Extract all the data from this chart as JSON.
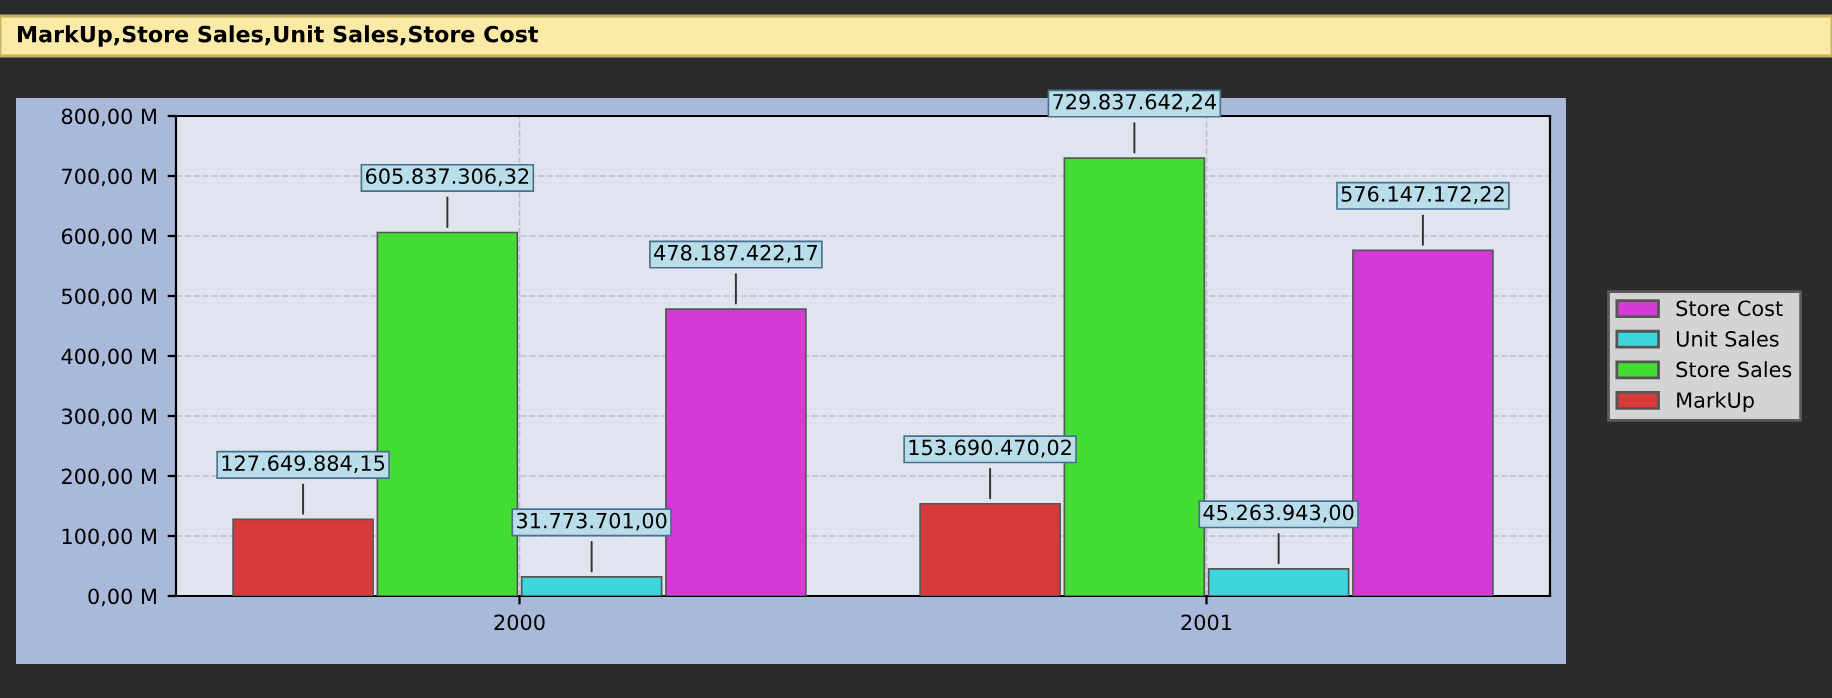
{
  "chart_data": {
    "type": "bar",
    "title": "MarkUp,Store Sales,Unit Sales,Store Cost",
    "categories": [
      "2000",
      "2001"
    ],
    "series": [
      {
        "name": "MarkUp",
        "color": "#d63a3a",
        "values": [
          127649884.15,
          153690470.02
        ],
        "value_labels": [
          "127.649.884,15",
          "153.690.470,02"
        ]
      },
      {
        "name": "Store Sales",
        "color": "#44dd33",
        "values": [
          605837306.32,
          729837642.24
        ],
        "value_labels": [
          "605.837.306,32",
          "729.837.642,24"
        ]
      },
      {
        "name": "Unit Sales",
        "color": "#3dd6dc",
        "values": [
          31773701.0,
          45263943.0
        ],
        "value_labels": [
          "31.773.701,00",
          "45.263.943,00"
        ]
      },
      {
        "name": "Store Cost",
        "color": "#d63ad6",
        "values": [
          478187422.17,
          576147172.22
        ],
        "value_labels": [
          "478.187.422,17",
          "576.147.172,22"
        ]
      }
    ],
    "ylim": [
      0,
      800000000
    ],
    "yticks": [
      {
        "value": 0,
        "label": "0,00 M"
      },
      {
        "value": 100000000,
        "label": "100,00 M"
      },
      {
        "value": 200000000,
        "label": "200,00 M"
      },
      {
        "value": 300000000,
        "label": "300,00 M"
      },
      {
        "value": 400000000,
        "label": "400,00 M"
      },
      {
        "value": 500000000,
        "label": "500,00 M"
      },
      {
        "value": 600000000,
        "label": "600,00 M"
      },
      {
        "value": 700000000,
        "label": "700,00 M"
      },
      {
        "value": 800000000,
        "label": "800,00 M"
      }
    ],
    "grid": true,
    "legend": "right"
  }
}
